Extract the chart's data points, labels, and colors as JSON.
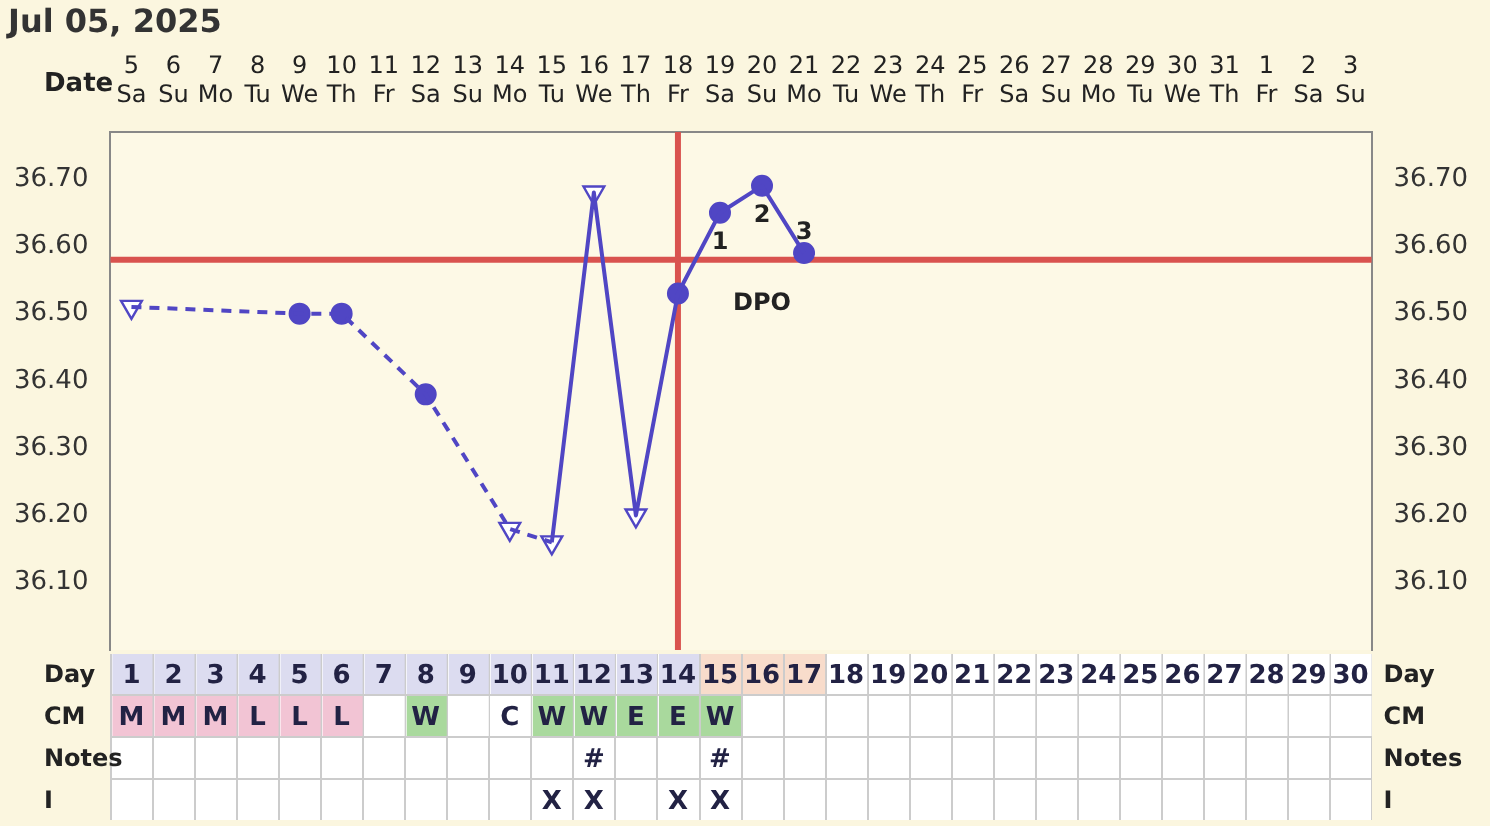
{
  "chart_data": {
    "type": "line",
    "title": "Jul 05, 2025",
    "xlabel": "Date",
    "categories": [
      "5 Sa",
      "6 Su",
      "7 Mo",
      "8 Tu",
      "9 We",
      "10 Th",
      "11 Fr",
      "12 Sa",
      "13 Su",
      "14 Mo",
      "15 Tu",
      "16 We",
      "17 Th",
      "18 Fr",
      "19 Sa",
      "20 Su",
      "21 Mo",
      "22 Tu",
      "23 We",
      "24 Th",
      "25 Fr",
      "26 Sa",
      "27 Su",
      "28 Mo",
      "29 Tu",
      "30 We",
      "31 Th",
      "1 Fr",
      "2 Sa",
      "3 Su"
    ],
    "ylim": [
      36.0,
      36.77
    ],
    "yticks": [
      {
        "value": 36.1,
        "label": "36.10"
      },
      {
        "value": 36.2,
        "label": "36.20"
      },
      {
        "value": 36.3,
        "label": "36.30"
      },
      {
        "value": 36.4,
        "label": "36.40"
      },
      {
        "value": 36.5,
        "label": "36.50"
      },
      {
        "value": 36.6,
        "label": "36.60"
      },
      {
        "value": 36.7,
        "label": "36.70"
      }
    ],
    "y2lim": [
      36.0,
      36.77
    ],
    "y2ticks": [
      {
        "value": 36.1,
        "label": "36.10"
      },
      {
        "value": 36.2,
        "label": "36.20"
      },
      {
        "value": 36.3,
        "label": "36.30"
      },
      {
        "value": 36.4,
        "label": "36.40"
      },
      {
        "value": 36.5,
        "label": "36.50"
      },
      {
        "value": 36.6,
        "label": "36.60"
      },
      {
        "value": 36.7,
        "label": "36.70"
      }
    ],
    "grid": false,
    "legend": "right",
    "series": [
      {
        "color": "#5046c4",
        "line_style": "dashed",
        "marker": "none",
        "values": [
          36.51,
          null,
          null,
          null,
          36.5,
          36.5,
          null,
          36.38,
          null,
          36.18,
          36.16,
          null,
          null,
          null,
          null,
          null,
          null,
          null,
          null,
          null,
          null,
          null,
          null,
          null,
          null,
          null,
          null,
          null,
          null,
          null
        ]
      },
      {
        "color": "#5046c4",
        "line_style": "solid",
        "marker": "none",
        "values": [
          null,
          null,
          null,
          null,
          null,
          null,
          null,
          null,
          null,
          null,
          36.16,
          36.68,
          36.2,
          36.53,
          36.65,
          36.69,
          36.59,
          null,
          null,
          null,
          null,
          null,
          null,
          null,
          null,
          null,
          null,
          null,
          null,
          null
        ]
      },
      {
        "type": "scatter",
        "color": "#5046c4",
        "marker": "circle",
        "values": [
          null,
          null,
          null,
          null,
          36.5,
          36.5,
          null,
          36.38,
          null,
          null,
          null,
          null,
          null,
          36.53,
          36.65,
          36.69,
          36.59,
          null,
          null,
          null,
          null,
          null,
          null,
          null,
          null,
          null,
          null,
          null,
          null,
          null
        ]
      },
      {
        "type": "scatter",
        "color": "#5046c4",
        "marker": "triangle",
        "values": [
          36.51,
          null,
          null,
          null,
          null,
          null,
          null,
          null,
          null,
          36.18,
          36.16,
          36.68,
          36.2,
          null,
          null,
          null,
          null,
          null,
          null,
          null,
          null,
          null,
          null,
          null,
          null,
          null,
          null,
          null,
          null,
          null
        ]
      },
      {
        "type": "other",
        "name": "Day",
        "value_labels": [
          "1",
          "2",
          "3",
          "4",
          "5",
          "6",
          "7",
          "8",
          "9",
          "10",
          "11",
          "12",
          "13",
          "14",
          "15",
          "16",
          "17",
          "18",
          "19",
          "20",
          "21",
          "22",
          "23",
          "24",
          "25",
          "26",
          "27",
          "28",
          "29",
          "30"
        ],
        "colors": [
          "#dcdcf0",
          "#dcdcf0",
          "#dcdcf0",
          "#dcdcf0",
          "#dcdcf0",
          "#dcdcf0",
          "#dcdcf0",
          "#dcdcf0",
          "#dcdcf0",
          "#dcdcf0",
          "#dcdcf0",
          "#dcdcf0",
          "#dcdcf0",
          "#dcdcf0",
          "#f8dccb",
          "#f8dccb",
          "#f8dccb",
          "#ffffff",
          "#ffffff",
          "#ffffff",
          "#ffffff",
          "#ffffff",
          "#ffffff",
          "#ffffff",
          "#ffffff",
          "#ffffff",
          "#ffffff",
          "#ffffff",
          "#ffffff",
          "#ffffff"
        ],
        "values": [
          null,
          null,
          null,
          null,
          null,
          null,
          null,
          null,
          null,
          null,
          null,
          null,
          null,
          null,
          null,
          null,
          null,
          null,
          null,
          null,
          null,
          null,
          null,
          null,
          null,
          null,
          null,
          null,
          null,
          null
        ]
      },
      {
        "type": "other",
        "name": "CM",
        "value_labels": [
          "M",
          "M",
          "M",
          "L",
          "L",
          "L",
          null,
          "W",
          null,
          "C",
          "W",
          "W",
          "E",
          "E",
          "W",
          null,
          null,
          null,
          null,
          null,
          null,
          null,
          null,
          null,
          null,
          null,
          null,
          null,
          null,
          null
        ],
        "colors": [
          "#f2c4d4",
          "#f2c4d4",
          "#f2c4d4",
          "#f2c4d4",
          "#f2c4d4",
          "#f2c4d4",
          "#ffffff",
          "#a9d99d",
          "#ffffff",
          "#ffffff",
          "#a9d99d",
          "#a9d99d",
          "#a9d99d",
          "#a9d99d",
          "#a9d99d",
          "#ffffff",
          "#ffffff",
          "#ffffff",
          "#ffffff",
          "#ffffff",
          "#ffffff",
          "#ffffff",
          "#ffffff",
          "#ffffff",
          "#ffffff",
          "#ffffff",
          "#ffffff",
          "#ffffff",
          "#ffffff",
          "#ffffff"
        ],
        "values": [
          null,
          null,
          null,
          null,
          null,
          null,
          null,
          null,
          null,
          null,
          null,
          null,
          null,
          null,
          null,
          null,
          null,
          null,
          null,
          null,
          null,
          null,
          null,
          null,
          null,
          null,
          null,
          null,
          null,
          null
        ]
      },
      {
        "type": "other",
        "name": "Notes",
        "value_labels": [
          null,
          null,
          null,
          null,
          null,
          null,
          null,
          null,
          null,
          null,
          null,
          "#",
          null,
          null,
          "#",
          null,
          null,
          null,
          null,
          null,
          null,
          null,
          null,
          null,
          null,
          null,
          null,
          null,
          null,
          null
        ],
        "values": [
          null,
          null,
          null,
          null,
          null,
          null,
          null,
          null,
          null,
          null,
          null,
          null,
          null,
          null,
          null,
          null,
          null,
          null,
          null,
          null,
          null,
          null,
          null,
          null,
          null,
          null,
          null,
          null,
          null,
          null
        ]
      },
      {
        "type": "other",
        "name": "I",
        "value_labels": [
          null,
          null,
          null,
          null,
          null,
          null,
          null,
          null,
          null,
          null,
          "X",
          "X",
          null,
          "X",
          "X",
          null,
          null,
          null,
          null,
          null,
          null,
          null,
          null,
          null,
          null,
          null,
          null,
          null,
          null,
          null
        ],
        "values": [
          null,
          null,
          null,
          null,
          null,
          null,
          null,
          null,
          null,
          null,
          null,
          null,
          null,
          null,
          null,
          null,
          null,
          null,
          null,
          null,
          null,
          null,
          null,
          null,
          null,
          null,
          null,
          null,
          null,
          null
        ]
      }
    ],
    "ref_lines": [
      {
        "axis": "y",
        "value": 36.58,
        "color": "#d9534f"
      },
      {
        "axis": "x",
        "value": "18 Fr",
        "color": "#d9534f"
      }
    ],
    "annotations": [
      {
        "text": "1",
        "x": "19 Sa",
        "y": 36.65
      },
      {
        "text": "2",
        "x": "20 Su",
        "y": 36.69
      },
      {
        "text": "3",
        "x": "21 Mo",
        "y": 36.59
      },
      "DPO"
    ]
  }
}
